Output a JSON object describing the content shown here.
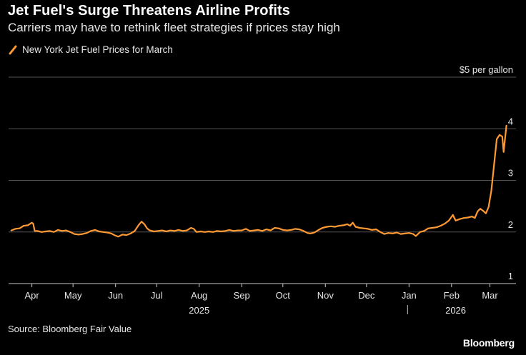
{
  "header": {
    "title": "Jet Fuel's Surge Threatens Airline Profits",
    "subtitle": "Carriers may have to rethink fleet strategies if prices stay high"
  },
  "legend": {
    "label": "New York Jet Fuel Prices for March",
    "color": "#ff9933"
  },
  "footer": {
    "source": "Source: Bloomberg Fair Value",
    "brand": "Bloomberg"
  },
  "chart_data": {
    "type": "line",
    "ylabel": "$5 per gallon",
    "ylim": [
      1,
      5
    ],
    "yticks": [
      {
        "value": 5,
        "label": "$5 per gallon"
      },
      {
        "value": 4,
        "label": "4"
      },
      {
        "value": 3,
        "label": "3"
      },
      {
        "value": 2,
        "label": "2"
      },
      {
        "value": 1,
        "label": "1"
      }
    ],
    "xlim": [
      "2025-03-15",
      "2026-03-20"
    ],
    "xticks": [
      {
        "date": "2025-04-01",
        "label": "Apr"
      },
      {
        "date": "2025-05-01",
        "label": "May"
      },
      {
        "date": "2025-06-01",
        "label": "Jun"
      },
      {
        "date": "2025-07-01",
        "label": "Jul"
      },
      {
        "date": "2025-08-01",
        "label": "Aug"
      },
      {
        "date": "2025-09-01",
        "label": "Sep"
      },
      {
        "date": "2025-10-01",
        "label": "Oct"
      },
      {
        "date": "2025-11-01",
        "label": "Nov"
      },
      {
        "date": "2025-12-01",
        "label": "Dec"
      },
      {
        "date": "2026-01-01",
        "label": "Jan"
      },
      {
        "date": "2026-02-01",
        "label": "Feb"
      },
      {
        "date": "2026-03-01",
        "label": "Mar"
      }
    ],
    "year_labels": [
      {
        "label": "2025",
        "date": "2025-08-01"
      },
      {
        "label": "2026",
        "date": "2026-02-04"
      }
    ],
    "year_divider": "2026-01-01",
    "grid": true,
    "legend_position": "top-left",
    "series": [
      {
        "name": "New York Jet Fuel Prices for March",
        "color": "#ff9933",
        "points": [
          [
            "2025-03-17",
            2.03
          ],
          [
            "2025-03-20",
            2.06
          ],
          [
            "2025-03-23",
            2.07
          ],
          [
            "2025-03-26",
            2.12
          ],
          [
            "2025-03-29",
            2.13
          ],
          [
            "2025-04-01",
            2.18
          ],
          [
            "2025-04-02",
            2.16
          ],
          [
            "2025-04-03",
            2.02
          ],
          [
            "2025-04-05",
            2.02
          ],
          [
            "2025-04-08",
            2.0
          ],
          [
            "2025-04-11",
            2.01
          ],
          [
            "2025-04-14",
            2.02
          ],
          [
            "2025-04-17",
            2.0
          ],
          [
            "2025-04-20",
            2.04
          ],
          [
            "2025-04-23",
            2.02
          ],
          [
            "2025-04-26",
            2.03
          ],
          [
            "2025-04-29",
            2.0
          ],
          [
            "2025-05-02",
            1.96
          ],
          [
            "2025-05-05",
            1.95
          ],
          [
            "2025-05-08",
            1.96
          ],
          [
            "2025-05-11",
            1.98
          ],
          [
            "2025-05-14",
            2.02
          ],
          [
            "2025-05-17",
            2.04
          ],
          [
            "2025-05-20",
            2.01
          ],
          [
            "2025-05-23",
            2.0
          ],
          [
            "2025-05-26",
            1.99
          ],
          [
            "2025-05-29",
            1.97
          ],
          [
            "2025-05-31",
            1.94
          ],
          [
            "2025-06-03",
            1.91
          ],
          [
            "2025-06-06",
            1.95
          ],
          [
            "2025-06-09",
            1.94
          ],
          [
            "2025-06-12",
            1.97
          ],
          [
            "2025-06-15",
            2.02
          ],
          [
            "2025-06-18",
            2.14
          ],
          [
            "2025-06-20",
            2.2
          ],
          [
            "2025-06-22",
            2.15
          ],
          [
            "2025-06-24",
            2.07
          ],
          [
            "2025-06-26",
            2.03
          ],
          [
            "2025-06-29",
            2.01
          ],
          [
            "2025-07-02",
            2.02
          ],
          [
            "2025-07-05",
            2.03
          ],
          [
            "2025-07-08",
            2.01
          ],
          [
            "2025-07-11",
            2.03
          ],
          [
            "2025-07-14",
            2.02
          ],
          [
            "2025-07-17",
            2.04
          ],
          [
            "2025-07-20",
            2.02
          ],
          [
            "2025-07-23",
            2.03
          ],
          [
            "2025-07-26",
            2.08
          ],
          [
            "2025-07-28",
            2.06
          ],
          [
            "2025-07-30",
            2.0
          ],
          [
            "2025-08-02",
            2.01
          ],
          [
            "2025-08-05",
            2.0
          ],
          [
            "2025-08-08",
            2.01
          ],
          [
            "2025-08-11",
            2.0
          ],
          [
            "2025-08-14",
            2.02
          ],
          [
            "2025-08-17",
            2.01
          ],
          [
            "2025-08-20",
            2.02
          ],
          [
            "2025-08-23",
            2.04
          ],
          [
            "2025-08-26",
            2.02
          ],
          [
            "2025-08-29",
            2.03
          ],
          [
            "2025-09-01",
            2.03
          ],
          [
            "2025-09-04",
            2.06
          ],
          [
            "2025-09-07",
            2.02
          ],
          [
            "2025-09-10",
            2.03
          ],
          [
            "2025-09-13",
            2.04
          ],
          [
            "2025-09-16",
            2.02
          ],
          [
            "2025-09-19",
            2.05
          ],
          [
            "2025-09-22",
            2.03
          ],
          [
            "2025-09-25",
            2.08
          ],
          [
            "2025-09-28",
            2.07
          ],
          [
            "2025-10-01",
            2.04
          ],
          [
            "2025-10-04",
            2.03
          ],
          [
            "2025-10-07",
            2.04
          ],
          [
            "2025-10-10",
            2.06
          ],
          [
            "2025-10-13",
            2.05
          ],
          [
            "2025-10-16",
            2.02
          ],
          [
            "2025-10-19",
            1.98
          ],
          [
            "2025-10-21",
            1.97
          ],
          [
            "2025-10-24",
            1.99
          ],
          [
            "2025-10-27",
            2.04
          ],
          [
            "2025-10-30",
            2.08
          ],
          [
            "2025-11-02",
            2.1
          ],
          [
            "2025-11-05",
            2.11
          ],
          [
            "2025-11-08",
            2.1
          ],
          [
            "2025-11-11",
            2.12
          ],
          [
            "2025-11-14",
            2.13
          ],
          [
            "2025-11-17",
            2.15
          ],
          [
            "2025-11-19",
            2.12
          ],
          [
            "2025-11-21",
            2.18
          ],
          [
            "2025-11-23",
            2.1
          ],
          [
            "2025-11-26",
            2.08
          ],
          [
            "2025-11-29",
            2.07
          ],
          [
            "2025-12-02",
            2.06
          ],
          [
            "2025-12-05",
            2.04
          ],
          [
            "2025-12-08",
            2.05
          ],
          [
            "2025-12-11",
            2.0
          ],
          [
            "2025-12-14",
            1.96
          ],
          [
            "2025-12-17",
            1.98
          ],
          [
            "2025-12-20",
            1.97
          ],
          [
            "2025-12-23",
            1.99
          ],
          [
            "2025-12-26",
            1.96
          ],
          [
            "2025-12-29",
            1.97
          ],
          [
            "2026-01-01",
            1.98
          ],
          [
            "2026-01-04",
            1.96
          ],
          [
            "2026-01-06",
            1.92
          ],
          [
            "2026-01-09",
            2.0
          ],
          [
            "2026-01-12",
            2.02
          ],
          [
            "2026-01-15",
            2.07
          ],
          [
            "2026-01-18",
            2.08
          ],
          [
            "2026-01-21",
            2.09
          ],
          [
            "2026-01-24",
            2.12
          ],
          [
            "2026-01-27",
            2.16
          ],
          [
            "2026-01-30",
            2.22
          ],
          [
            "2026-02-02",
            2.33
          ],
          [
            "2026-02-04",
            2.22
          ],
          [
            "2026-02-07",
            2.25
          ],
          [
            "2026-02-10",
            2.27
          ],
          [
            "2026-02-13",
            2.28
          ],
          [
            "2026-02-16",
            2.3
          ],
          [
            "2026-02-18",
            2.27
          ],
          [
            "2026-02-20",
            2.4
          ],
          [
            "2026-02-22",
            2.45
          ],
          [
            "2026-02-24",
            2.41
          ],
          [
            "2026-02-26",
            2.36
          ],
          [
            "2026-02-28",
            2.48
          ],
          [
            "2026-03-02",
            2.8
          ],
          [
            "2026-03-04",
            3.3
          ],
          [
            "2026-03-06",
            3.8
          ],
          [
            "2026-03-08",
            3.88
          ],
          [
            "2026-03-10",
            3.85
          ],
          [
            "2026-03-11",
            3.55
          ],
          [
            "2026-03-13",
            4.06
          ]
        ]
      }
    ]
  }
}
